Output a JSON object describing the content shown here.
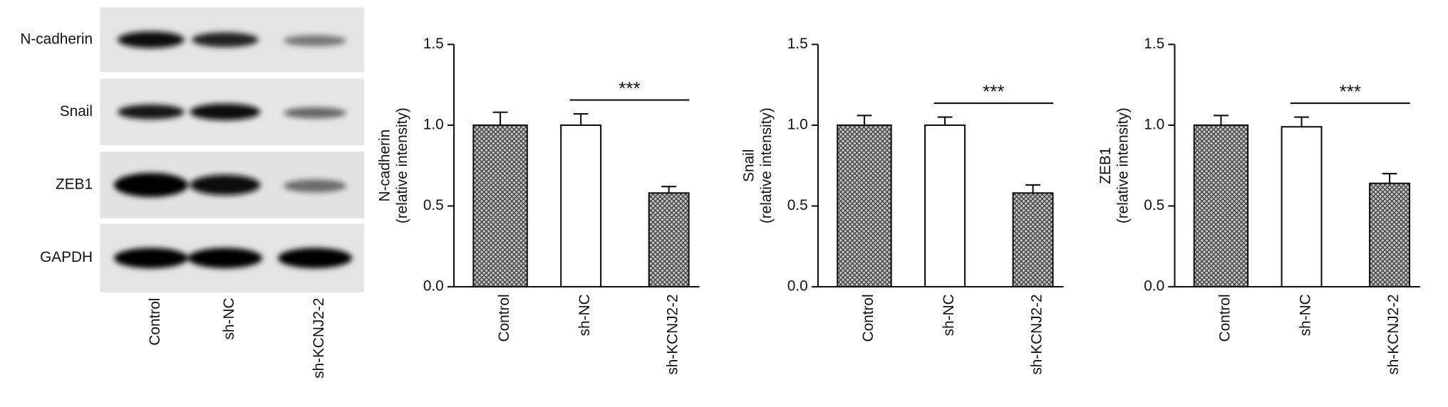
{
  "blot": {
    "rows": [
      "N-cadherin",
      "Snail",
      "ZEB1",
      "GAPDH"
    ],
    "lanes": [
      "Control",
      "sh-NC",
      "sh-KCNJ2-2"
    ]
  },
  "chart_data": [
    {
      "type": "bar",
      "ylabel": [
        "N-cadherin",
        "(relative intensity)"
      ],
      "categories": [
        "Control",
        "sh-NC",
        "sh-KCNJ2-2"
      ],
      "values": [
        1.0,
        1.0,
        0.58
      ],
      "errors": [
        0.08,
        0.07,
        0.04
      ],
      "hatch": [
        true,
        false,
        true
      ],
      "ylim": [
        0,
        1.5
      ],
      "yticks": [
        {
          "value": 0,
          "label": "0.0"
        },
        0.5,
        {
          "value": 1,
          "label": "1.0"
        },
        1.5
      ],
      "annotation": "***"
    },
    {
      "type": "bar",
      "ylabel": [
        "Snail",
        "(relative intensity)"
      ],
      "categories": [
        "Control",
        "sh-NC",
        "sh-KCNJ2-2"
      ],
      "values": [
        1.0,
        1.0,
        0.58
      ],
      "errors": [
        0.06,
        0.05,
        0.05
      ],
      "hatch": [
        true,
        false,
        true
      ],
      "ylim": [
        0,
        1.5
      ],
      "yticks": [
        {
          "value": 0,
          "label": "0.0"
        },
        0.5,
        {
          "value": 1,
          "label": "1.0"
        },
        1.5
      ],
      "annotation": "***"
    },
    {
      "type": "bar",
      "ylabel": [
        "ZEB1",
        "(relative intensity)"
      ],
      "categories": [
        "Control",
        "sh-NC",
        "sh-KCNJ2-2"
      ],
      "values": [
        1.0,
        0.99,
        0.64
      ],
      "errors": [
        0.06,
        0.06,
        0.06
      ],
      "hatch": [
        true,
        false,
        true
      ],
      "ylim": [
        0,
        1.5
      ],
      "yticks": [
        {
          "value": 0,
          "label": "0.0"
        },
        0.5,
        {
          "value": 1,
          "label": "1.0"
        },
        1.5
      ],
      "annotation": "***"
    }
  ]
}
